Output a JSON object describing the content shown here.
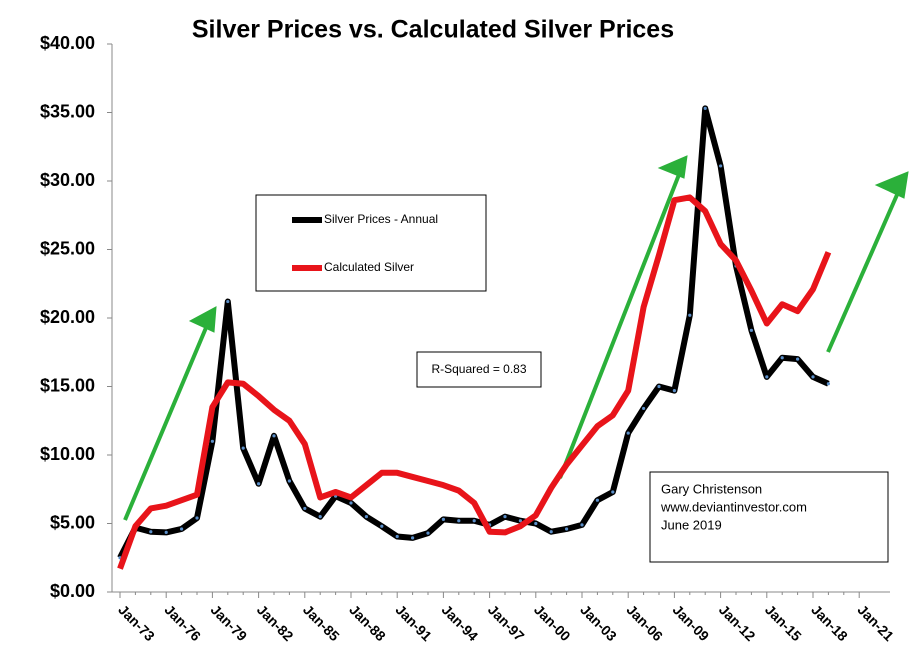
{
  "chart_data": {
    "type": "line",
    "title": "Silver Prices vs. Calculated Silver Prices",
    "categories": [
      "Jan-73",
      null,
      null,
      "Jan-76",
      null,
      null,
      "Jan-79",
      null,
      null,
      "Jan-82",
      null,
      null,
      "Jan-85",
      null,
      null,
      "Jan-88",
      null,
      null,
      "Jan-91",
      null,
      null,
      "Jan-94",
      null,
      null,
      "Jan-97",
      null,
      null,
      "Jan-00",
      null,
      null,
      "Jan-03",
      null,
      null,
      "Jan-06",
      null,
      null,
      "Jan-09",
      null,
      null,
      "Jan-12",
      null,
      null,
      "Jan-15",
      null,
      null,
      "Jan-18",
      null,
      null,
      "Jan-21"
    ],
    "series": [
      {
        "name": "Silver Prices - Annual",
        "color": "#000000",
        "marker_color": "#5b8fc9",
        "values": [
          2.5,
          4.7,
          4.4,
          4.35,
          4.6,
          5.4,
          11.0,
          21.2,
          10.5,
          7.9,
          11.4,
          8.1,
          6.1,
          5.5,
          7.0,
          6.5,
          5.5,
          4.8,
          4.05,
          3.95,
          4.3,
          5.3,
          5.2,
          5.2,
          4.9,
          5.5,
          5.2,
          5.0,
          4.4,
          4.6,
          4.9,
          6.7,
          7.3,
          11.6,
          13.4,
          15.0,
          14.7,
          20.2,
          35.3,
          31.1,
          23.8,
          19.1,
          15.7,
          17.1,
          17.0,
          15.7,
          15.2,
          null,
          null
        ]
      },
      {
        "name": "Calculated Silver",
        "color": "#e8141a",
        "values": [
          1.7,
          4.8,
          6.1,
          6.3,
          6.7,
          7.1,
          13.5,
          15.3,
          15.2,
          14.3,
          13.3,
          12.5,
          10.8,
          6.9,
          7.3,
          6.9,
          7.8,
          8.7,
          8.7,
          8.4,
          8.1,
          7.8,
          7.4,
          6.5,
          4.4,
          4.35,
          4.8,
          5.6,
          7.6,
          9.3,
          10.7,
          12.1,
          12.9,
          14.7,
          20.8,
          24.6,
          28.6,
          28.8,
          27.8,
          25.4,
          24.2,
          22.0,
          19.6,
          21.0,
          20.5,
          22.1,
          24.8,
          null,
          null
        ]
      }
    ],
    "ylim": [
      0,
      40
    ],
    "yticks": [
      {
        "value": 0,
        "label": "$0.00"
      },
      {
        "value": 5,
        "label": "$5.00"
      },
      {
        "value": 10,
        "label": "$10.00"
      },
      {
        "value": 15,
        "label": "$15.00"
      },
      {
        "value": 20,
        "label": "$20.00"
      },
      {
        "value": 25,
        "label": "$25.00"
      },
      {
        "value": 30,
        "label": "$30.00"
      },
      {
        "value": 35,
        "label": "$35.00"
      },
      {
        "value": 40,
        "label": "$40.00"
      }
    ],
    "grid": false,
    "legend": "center-left",
    "annotations": [
      "R-Squared = 0.83",
      "Gary Christenson",
      "www.deviantinvestor.com",
      "June 2019"
    ]
  }
}
